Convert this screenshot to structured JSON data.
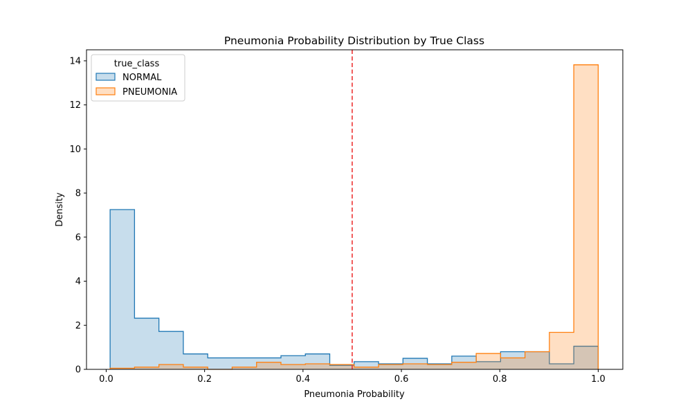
{
  "chart_data": {
    "type": "histogram",
    "title": "Pneumonia Probability Distribution by True Class",
    "xlabel": "Pneumonia Probability",
    "ylabel": "Density",
    "xlim": [
      -0.04,
      1.05
    ],
    "ylim": [
      0,
      14.5
    ],
    "x_ticks": [
      0.0,
      0.2,
      0.4,
      0.6,
      0.8,
      1.0
    ],
    "x_tick_labels": [
      "0.0",
      "0.2",
      "0.4",
      "0.6",
      "0.8",
      "1.0"
    ],
    "y_ticks": [
      0,
      2,
      4,
      6,
      8,
      10,
      12,
      14
    ],
    "y_tick_labels": [
      "0",
      "2",
      "4",
      "6",
      "8",
      "10",
      "12",
      "14"
    ],
    "bin_edges": [
      0.008,
      0.0576,
      0.1072,
      0.1568,
      0.2064,
      0.256,
      0.3056,
      0.3552,
      0.4048,
      0.4544,
      0.504,
      0.5536,
      0.6032,
      0.6528,
      0.7024,
      0.752,
      0.8016,
      0.8512,
      0.9008,
      0.9504,
      1.0
    ],
    "threshold": {
      "x": 0.5,
      "color": "#ee3333",
      "style": "dashed"
    },
    "legend": {
      "title": "true_class",
      "placement": "upper-left"
    },
    "series": [
      {
        "name": "NORMAL",
        "edge_color": "#1f77b4",
        "fill_color": "#1f77b4",
        "fill_opacity": 0.25,
        "values": [
          7.25,
          2.32,
          1.72,
          0.7,
          0.52,
          0.52,
          0.52,
          0.62,
          0.7,
          0.18,
          0.35,
          0.25,
          0.5,
          0.25,
          0.6,
          0.35,
          0.8,
          0.8,
          0.25,
          1.05
        ]
      },
      {
        "name": "PNEUMONIA",
        "edge_color": "#ff7f0e",
        "fill_color": "#ff7f0e",
        "fill_opacity": 0.25,
        "values": [
          0.05,
          0.1,
          0.22,
          0.1,
          0.0,
          0.1,
          0.32,
          0.22,
          0.25,
          0.22,
          0.1,
          0.22,
          0.25,
          0.22,
          0.32,
          0.72,
          0.52,
          0.8,
          1.68,
          13.82
        ]
      }
    ]
  }
}
